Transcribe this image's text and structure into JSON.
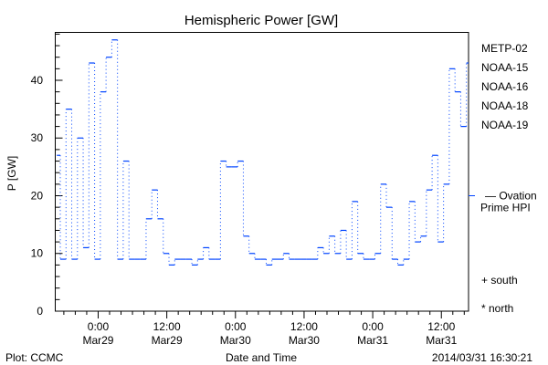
{
  "chart_data": {
    "type": "line",
    "style": "step",
    "title": "Hemispheric Power [GW]",
    "xlabel": "Date and Time",
    "ylabel": "P [GW]",
    "x_unit": "hours since 2014/03/28 16:30",
    "xlim": [
      0,
      72.25
    ],
    "ylim": [
      0,
      48.3
    ],
    "yticks": [
      0,
      10,
      20,
      30,
      40
    ],
    "ytick_labels": [
      "0",
      "10",
      "20",
      "30",
      "40"
    ],
    "xticks": [
      {
        "hour": 7.5,
        "time": "0:00",
        "date": "Mar29"
      },
      {
        "hour": 19.5,
        "time": "12:00",
        "date": "Mar29"
      },
      {
        "hour": 31.5,
        "time": "0:00",
        "date": "Mar30"
      },
      {
        "hour": 43.5,
        "time": "12:00",
        "date": "Mar30"
      },
      {
        "hour": 55.5,
        "time": "0:00",
        "date": "Mar31"
      },
      {
        "hour": 67.5,
        "time": "12:00",
        "date": "Mar31"
      }
    ],
    "series": [
      {
        "name": "NOAA-15",
        "color": "#0044ff",
        "hours": [
          0,
          1,
          2,
          3,
          4,
          5,
          6,
          7,
          8,
          9,
          10,
          11,
          12,
          13,
          14,
          15,
          16,
          17,
          18,
          19,
          20,
          21,
          22,
          23,
          24,
          25,
          26,
          27,
          28,
          29,
          30,
          31,
          32,
          33,
          34,
          35,
          36,
          37,
          38,
          39,
          40,
          41,
          42,
          43,
          44,
          45,
          46,
          47,
          48,
          49,
          50,
          51,
          52,
          53,
          54,
          55,
          56,
          57,
          58,
          59,
          60,
          61,
          62,
          63,
          64,
          65,
          66,
          67,
          68,
          69,
          70,
          71,
          72
        ],
        "values": [
          27,
          9,
          35,
          9,
          30,
          11,
          43,
          9,
          38,
          44,
          47,
          9,
          26,
          9,
          9,
          9,
          16,
          21,
          16,
          10,
          8,
          9,
          9,
          9,
          8,
          9,
          11,
          9,
          9,
          26,
          25,
          25,
          26,
          13,
          10,
          9,
          9,
          8,
          9,
          9,
          10,
          9,
          9,
          9,
          9,
          9,
          11,
          10,
          13,
          10,
          14,
          9,
          19,
          10,
          9,
          9,
          10,
          22,
          18,
          9,
          8,
          9,
          19,
          12,
          13,
          21,
          27,
          12,
          22,
          42,
          38,
          32,
          43
        ]
      }
    ],
    "legend": {
      "placement": "right",
      "entries": [
        {
          "label": "METP-02",
          "color": "#000000"
        },
        {
          "label": "NOAA-15",
          "color": "#0022dd"
        },
        {
          "label": "NOAA-16",
          "color": "#00aaff"
        },
        {
          "label": "NOAA-18",
          "color": "#33ee66"
        },
        {
          "label": "NOAA-19",
          "color": "#ff8800"
        }
      ],
      "hpi_label_1": "— Ovation",
      "hpi_label_2": "Prime HPI",
      "hpi_value": 20,
      "hpi_color": "#0044ff",
      "south_label": "+ south",
      "north_label": "* north"
    }
  },
  "footer": {
    "left": "Plot: CCMC",
    "right": "2014/03/31 16:30:21"
  }
}
